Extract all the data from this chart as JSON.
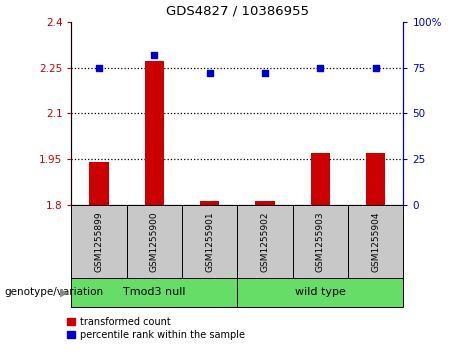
{
  "title": "GDS4827 / 10386955",
  "samples": [
    "GSM1255899",
    "GSM1255900",
    "GSM1255901",
    "GSM1255902",
    "GSM1255903",
    "GSM1255904"
  ],
  "red_values": [
    1.94,
    2.27,
    1.815,
    1.812,
    1.97,
    1.97
  ],
  "blue_values": [
    75,
    82,
    72,
    72,
    75,
    75
  ],
  "ylim_left": [
    1.8,
    2.4
  ],
  "ylim_right": [
    0,
    100
  ],
  "yticks_left": [
    1.8,
    1.95,
    2.1,
    2.25,
    2.4
  ],
  "yticks_right": [
    0,
    25,
    50,
    75,
    100
  ],
  "ytick_labels_left": [
    "1.8",
    "1.95",
    "2.1",
    "2.25",
    "2.4"
  ],
  "ytick_labels_right": [
    "0",
    "25",
    "50",
    "75",
    "100%"
  ],
  "hlines": [
    1.95,
    2.1,
    2.25
  ],
  "groups": [
    {
      "label": "Tmod3 null",
      "indices": [
        0,
        1,
        2
      ],
      "color": "#66DD66"
    },
    {
      "label": "wild type",
      "indices": [
        3,
        4,
        5
      ],
      "color": "#66DD66"
    }
  ],
  "group_label_prefix": "genotype/variation",
  "legend_items": [
    {
      "label": "transformed count",
      "color": "#CC0000"
    },
    {
      "label": "percentile rank within the sample",
      "color": "#0000CC"
    }
  ],
  "bar_color": "#CC0000",
  "dot_color": "#0000CC",
  "bar_width": 0.35,
  "sample_box_color": "#C8C8C8",
  "left_axis_color": "#CC0000",
  "right_axis_color": "#0000CC"
}
